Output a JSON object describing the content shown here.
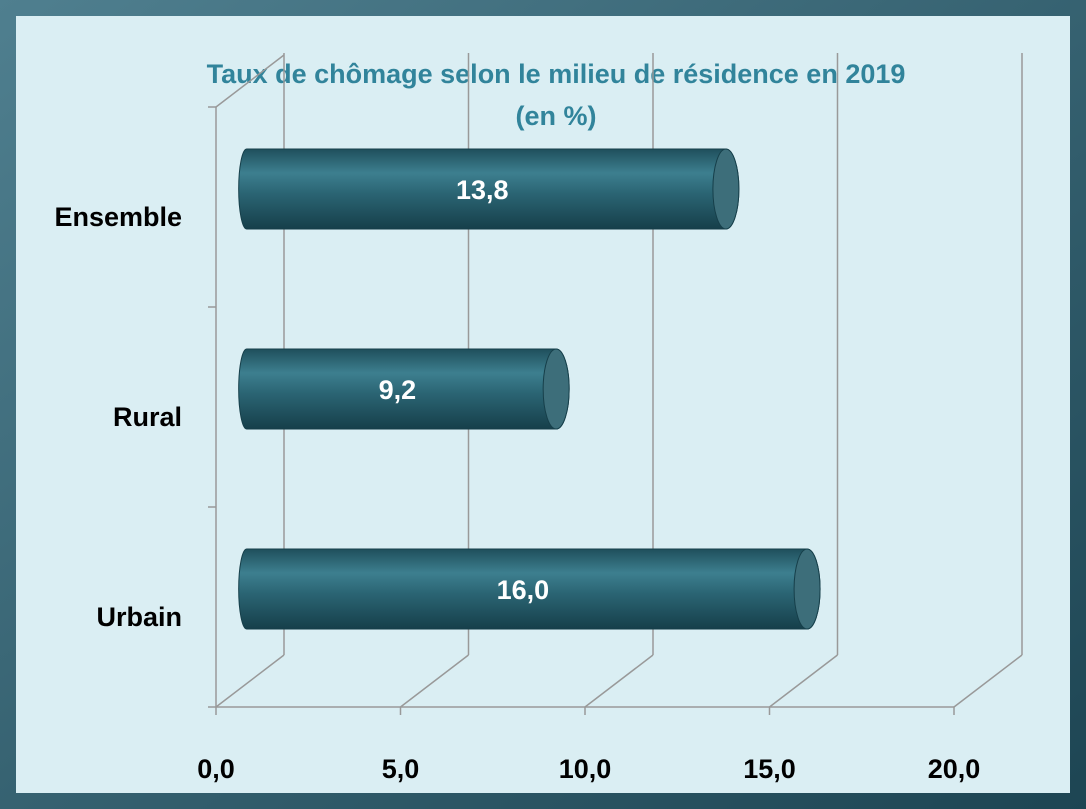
{
  "chart_data": {
    "type": "bar",
    "orientation": "horizontal",
    "title": "Taux de chômage selon le milieu de résidence en 2019",
    "subtitle": "(en %)",
    "categories": [
      "Ensemble",
      "Rural",
      "Urbain"
    ],
    "values": [
      13.8,
      9.2,
      16.0
    ],
    "value_labels": [
      "13,8",
      "9,2",
      "16,0"
    ],
    "color": "#2b6574",
    "xlim": [
      0,
      20
    ],
    "xticks": [
      {
        "value": 0,
        "label": "0,0"
      },
      {
        "value": 5,
        "label": "5,0"
      },
      {
        "value": 10,
        "label": "10,0"
      },
      {
        "value": 15,
        "label": "15,0"
      },
      {
        "value": 20,
        "label": "20,0"
      }
    ],
    "grid": true
  }
}
